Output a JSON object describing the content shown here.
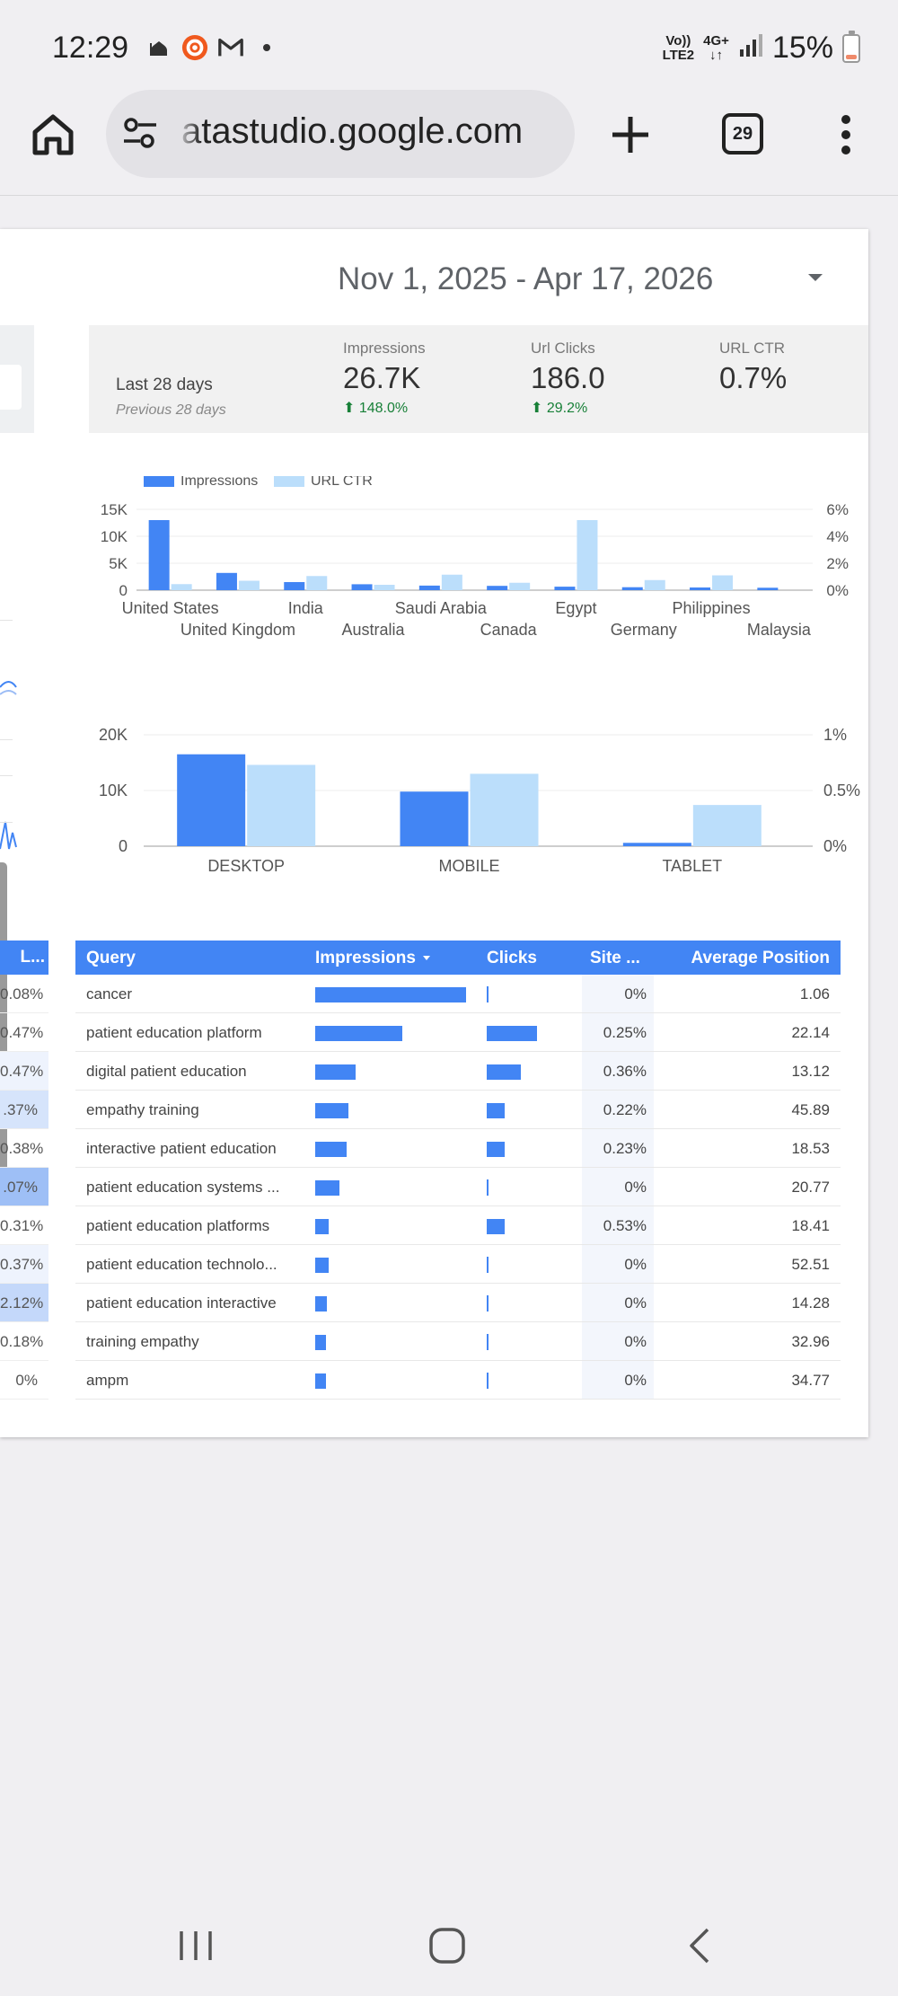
{
  "status_bar": {
    "time": "12:29",
    "net_top": "Vo))",
    "net_bottom": "LTE2",
    "net_type": "4G+",
    "battery": "15%",
    "notification_icons": [
      "mosque-icon",
      "app-icon",
      "gmail-icon",
      "dot-icon"
    ]
  },
  "browser": {
    "url": "atastudio.google.com",
    "tab_count": "29"
  },
  "report": {
    "date_range": "Nov 1, 2025 - Apr 17, 2026",
    "scorecard": {
      "period": "Last 28 days",
      "previous": "Previous 28 days",
      "metrics": [
        {
          "label": "Impressions",
          "value": "26.7K",
          "delta": "148.0%"
        },
        {
          "label": "Url Clicks",
          "value": "186.0",
          "delta": "29.2%"
        },
        {
          "label": "URL CTR",
          "value": "0.7%",
          "delta": ""
        }
      ]
    }
  },
  "chart_data": [
    {
      "type": "bar",
      "legend": [
        "Impressions",
        "URL CTR"
      ],
      "legend_position": "top-left",
      "categories": [
        "United States",
        "United Kingdom",
        "India",
        "Australia",
        "Saudi Arabia",
        "Canada",
        "Egypt",
        "Germany",
        "Philippines",
        "Malaysia"
      ],
      "series": [
        {
          "name": "Impressions",
          "axis": "left",
          "values": [
            13000,
            3200,
            1500,
            1100,
            850,
            800,
            650,
            550,
            500,
            450
          ]
        },
        {
          "name": "URL CTR",
          "axis": "right",
          "values": [
            0.45,
            0.7,
            1.05,
            0.4,
            1.15,
            0.55,
            5.2,
            0.75,
            1.1,
            0
          ]
        }
      ],
      "y_left": {
        "ticks": [
          "0",
          "5K",
          "10K",
          "15K"
        ],
        "range": [
          0,
          15000
        ]
      },
      "y_right": {
        "ticks": [
          "0%",
          "2%",
          "4%",
          "6%"
        ],
        "range": [
          0,
          6
        ]
      }
    },
    {
      "type": "bar",
      "categories": [
        "DESKTOP",
        "MOBILE",
        "TABLET"
      ],
      "series": [
        {
          "name": "Impressions",
          "axis": "left",
          "values": [
            16500,
            9800,
            600
          ]
        },
        {
          "name": "URL CTR",
          "axis": "right",
          "values": [
            0.73,
            0.65,
            0.37
          ]
        }
      ],
      "y_left": {
        "ticks": [
          "0",
          "10K",
          "20K"
        ],
        "range": [
          0,
          20000
        ]
      },
      "y_right": {
        "ticks": [
          "0%",
          "0.5%",
          "1%"
        ],
        "range": [
          0,
          1
        ]
      }
    }
  ],
  "left_column": {
    "header": "L...",
    "values": [
      "0.08%",
      "0.47%",
      "0.47%",
      ".37%",
      "0.38%",
      ".07%",
      "0.31%",
      "0.37%",
      "2.12%",
      "0.18%",
      "0%"
    ]
  },
  "query_table": {
    "headers": {
      "query": "Query",
      "impressions": "Impressions",
      "clicks": "Clicks",
      "ctr": "Site ...",
      "position": "Average Position"
    },
    "rows": [
      {
        "query": "cancer",
        "impressions_pct": 1.0,
        "clicks_pct": 0.0,
        "ctr": "0%",
        "position": "1.06"
      },
      {
        "query": "patient education platform",
        "impressions_pct": 0.58,
        "clicks_pct": 0.34,
        "ctr": "0.25%",
        "position": "22.14"
      },
      {
        "query": "digital patient education",
        "impressions_pct": 0.27,
        "clicks_pct": 0.23,
        "ctr": "0.36%",
        "position": "13.12"
      },
      {
        "query": "empathy training",
        "impressions_pct": 0.22,
        "clicks_pct": 0.12,
        "ctr": "0.22%",
        "position": "45.89"
      },
      {
        "query": "interactive patient education",
        "impressions_pct": 0.21,
        "clicks_pct": 0.12,
        "ctr": "0.23%",
        "position": "18.53"
      },
      {
        "query": "patient education systems ...",
        "impressions_pct": 0.16,
        "clicks_pct": 0.0,
        "ctr": "0%",
        "position": "20.77"
      },
      {
        "query": "patient education platforms",
        "impressions_pct": 0.09,
        "clicks_pct": 0.12,
        "ctr": "0.53%",
        "position": "18.41"
      },
      {
        "query": "patient education technolo...",
        "impressions_pct": 0.09,
        "clicks_pct": 0.0,
        "ctr": "0%",
        "position": "52.51"
      },
      {
        "query": "patient education interactive",
        "impressions_pct": 0.08,
        "clicks_pct": 0.0,
        "ctr": "0%",
        "position": "14.28"
      },
      {
        "query": "training empathy",
        "impressions_pct": 0.07,
        "clicks_pct": 0.0,
        "ctr": "0%",
        "position": "32.96"
      },
      {
        "query": "ampm",
        "impressions_pct": 0.07,
        "clicks_pct": 0.0,
        "ctr": "0%",
        "position": "34.77"
      }
    ]
  },
  "colors": {
    "impressions": "#4285f4",
    "ctr": "#bbdefb",
    "positive_delta": "#188038",
    "table_header": "#4285f4"
  }
}
